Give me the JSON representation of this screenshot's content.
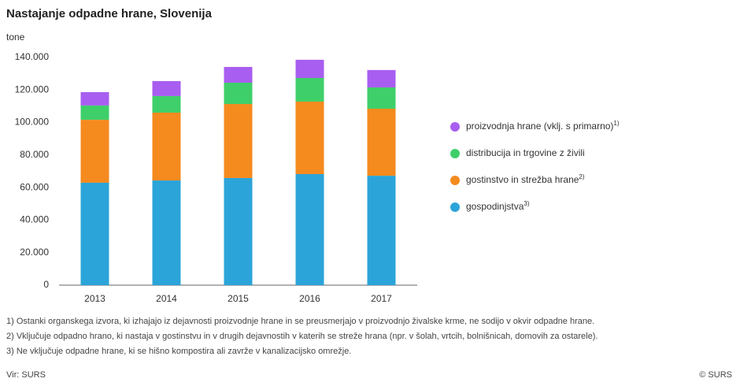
{
  "chart_data": {
    "type": "stacked-bar",
    "title": "Nastajanje odpadne hrane, Slovenija",
    "y_label": "tone",
    "categories": [
      "2013",
      "2014",
      "2015",
      "2016",
      "2017"
    ],
    "series": [
      {
        "name": "gospodinjstva",
        "note": "3)",
        "color": "#2ba4d9",
        "values": [
          63000,
          64400,
          65900,
          68300,
          67300
        ]
      },
      {
        "name": "gostinstvo in strežba hrane",
        "note": "2)",
        "color": "#f58a1f",
        "values": [
          38700,
          41700,
          45500,
          44600,
          41200
        ]
      },
      {
        "name": "distribucija in trgovine z živili",
        "color": "#3fcf6a",
        "values": [
          8800,
          10200,
          13100,
          14500,
          13100
        ]
      },
      {
        "name": "proizvodnja hrane (vklj. s primarno)",
        "note": "1)",
        "color": "#a85ef0",
        "values": [
          8200,
          9200,
          9700,
          11200,
          10700
        ]
      }
    ],
    "ylim": [
      0,
      140000
    ],
    "yticks": [
      0,
      {
        "value": 20000,
        "label": "20.000"
      },
      {
        "value": 40000,
        "label": "40.000"
      },
      {
        "value": 60000,
        "label": "60.000"
      },
      {
        "value": 80000,
        "label": "80.000"
      },
      {
        "value": 100000,
        "label": "100.000"
      },
      {
        "value": 120000,
        "label": "120.000"
      },
      {
        "value": 140000,
        "label": "140.000"
      }
    ],
    "footnotes": [
      "1) Ostanki organskega izvora, ki izhajajo iz dejavnosti proizvodnje hrane in se preusmerjajo v proizvodnjo živalske krme, ne sodijo v okvir odpadne hrane.",
      "2) Vključuje odpadno hrano, ki nastaja v gostinstvu in v drugih dejavnostih v katerih se streže hrana (npr. v šolah, vrtcih, bolnišnicah, domovih za ostarele).",
      "3) Ne vključuje odpadne hrane, ki se hišno kompostira ali zavrže v kanalizacijsko omrežje."
    ],
    "source": "Vir: SURS",
    "copyright": "© SURS"
  }
}
